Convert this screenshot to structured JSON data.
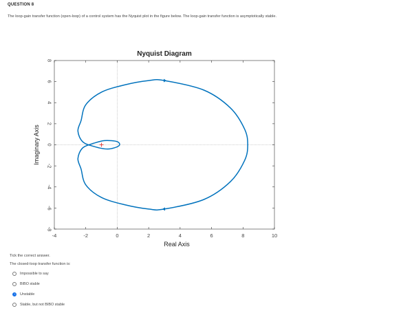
{
  "question": {
    "title": "QUESTION 8",
    "text": "The loop-gain transfer function (open-loop) of a control system has the Nyquist plot in the figure below. The loop-gain transfer function is asymptotically stable."
  },
  "chart_data": {
    "type": "line",
    "title": "Nyquist Diagram",
    "xlabel": "Real Axis",
    "ylabel": "Imaginary Axis",
    "xlim": [
      -4,
      10
    ],
    "ylim": [
      -8,
      8
    ],
    "xticks": [
      "-4",
      "-2",
      "0",
      "2",
      "4",
      "6",
      "8",
      "10"
    ],
    "yticks": [
      "-8",
      "-6",
      "-4",
      "-2",
      "0",
      "2",
      "4",
      "6",
      "8"
    ],
    "grid": false,
    "critical_point": {
      "x": -1,
      "y": 0,
      "marker": "+"
    },
    "series": [
      {
        "color": "#0072bd",
        "points": [
          [
            -1.5,
            0.15
          ],
          [
            -2.2,
            -0.3
          ],
          [
            -2.5,
            -1.3
          ],
          [
            -2.3,
            -2.3
          ],
          [
            -2.0,
            -3.8
          ],
          [
            -1.0,
            -5.0
          ],
          [
            0.5,
            -5.7
          ],
          [
            2.0,
            -6.1
          ],
          [
            3.0,
            -6.1
          ],
          [
            5.5,
            -5.2
          ],
          [
            7.2,
            -3.5
          ],
          [
            8.1,
            -1.5
          ],
          [
            8.3,
            0
          ],
          [
            8.1,
            1.5
          ],
          [
            7.2,
            3.5
          ],
          [
            5.5,
            5.2
          ],
          [
            3.0,
            6.1
          ],
          [
            2.0,
            6.1
          ],
          [
            0.5,
            5.7
          ],
          [
            -1.0,
            5.0
          ],
          [
            -2.0,
            3.8
          ],
          [
            -2.3,
            2.3
          ],
          [
            -2.5,
            1.3
          ],
          [
            -2.2,
            0.3
          ],
          [
            -1.5,
            -0.15
          ],
          [
            -0.6,
            -0.4
          ],
          [
            0.1,
            -0.1
          ],
          [
            0.0,
            0.3
          ],
          [
            -0.8,
            0.4
          ],
          [
            -1.5,
            0.15
          ]
        ]
      }
    ],
    "axis_color": "#333333",
    "zero_line_color": "#c0c0c0"
  },
  "answers": {
    "instruction": "Tick the correct answer.",
    "prompt": "The closed-loop transfer function is:",
    "options": [
      {
        "label": "Impossible to say",
        "selected": false
      },
      {
        "label": "BIBO stable",
        "selected": false
      },
      {
        "label": "Unstable",
        "selected": true
      },
      {
        "label": "Stable, but not BIBO stable",
        "selected": false
      }
    ],
    "accent_color": "#1a73e8"
  }
}
